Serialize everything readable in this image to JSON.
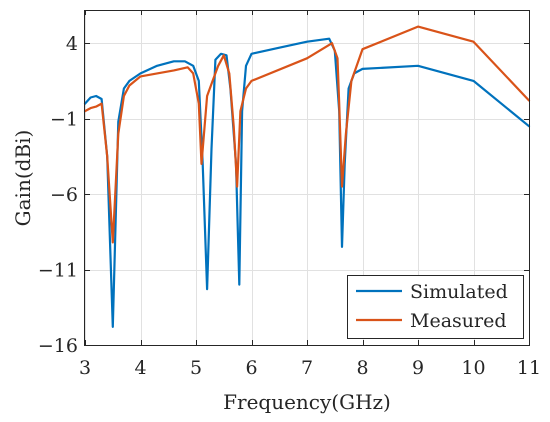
{
  "chart_data": {
    "type": "line",
    "title": "",
    "xlabel": "Frequency(GHz)",
    "ylabel": "Gain(dBi)",
    "xlim": [
      3,
      11
    ],
    "ylim": [
      -16,
      6.2
    ],
    "xticks": [
      3,
      4,
      5,
      6,
      7,
      8,
      9,
      10,
      11
    ],
    "yticks": [
      4,
      -1,
      -6,
      -11,
      -16
    ],
    "xtick_labels": [
      "3",
      "4",
      "5",
      "6",
      "7",
      "8",
      "9",
      "10",
      "11"
    ],
    "ytick_labels": [
      "4",
      "−1",
      "−6",
      "−11",
      "−16"
    ],
    "grid": true,
    "legend_position": "bottom-right",
    "series": [
      {
        "name": "Simulated",
        "color": "#0072BD",
        "x": [
          3.0,
          3.1,
          3.2,
          3.3,
          3.4,
          3.5,
          3.6,
          3.7,
          3.8,
          4.0,
          4.3,
          4.6,
          4.8,
          4.95,
          5.05,
          5.12,
          5.2,
          5.28,
          5.35,
          5.45,
          5.55,
          5.62,
          5.72,
          5.78,
          5.83,
          5.9,
          6.0,
          6.5,
          7.0,
          7.4,
          7.5,
          7.58,
          7.63,
          7.68,
          7.75,
          7.85,
          8.0,
          9.0,
          10.0,
          11.0
        ],
        "y": [
          0.0,
          0.4,
          0.5,
          0.3,
          -3.5,
          -14.8,
          -1.2,
          1.0,
          1.5,
          2.0,
          2.5,
          2.8,
          2.8,
          2.5,
          1.5,
          -4.0,
          -12.3,
          -3.0,
          2.9,
          3.3,
          3.2,
          1.0,
          -4.0,
          -12.0,
          -0.5,
          2.5,
          3.3,
          3.7,
          4.1,
          4.3,
          3.5,
          -0.5,
          -9.5,
          -4.0,
          1.0,
          2.0,
          2.3,
          2.5,
          1.5,
          -1.5
        ]
      },
      {
        "name": "Measured",
        "color": "#D95319",
        "x": [
          3.0,
          3.1,
          3.2,
          3.3,
          3.4,
          3.5,
          3.6,
          3.7,
          3.8,
          4.0,
          4.3,
          4.6,
          4.85,
          4.95,
          5.05,
          5.1,
          5.2,
          5.3,
          5.4,
          5.5,
          5.6,
          5.68,
          5.74,
          5.8,
          5.9,
          6.0,
          7.0,
          7.45,
          7.55,
          7.58,
          7.63,
          7.7,
          7.8,
          8.0,
          9.0,
          10.0,
          11.0
        ],
        "y": [
          -0.5,
          -0.3,
          -0.2,
          0.0,
          -3.5,
          -9.2,
          -2.0,
          0.5,
          1.2,
          1.8,
          2.0,
          2.2,
          2.4,
          2.0,
          0.0,
          -4.0,
          0.5,
          1.5,
          2.5,
          3.2,
          2.0,
          -1.5,
          -5.5,
          -0.5,
          1.0,
          1.5,
          3.0,
          4.0,
          3.0,
          0.0,
          -5.5,
          -2.0,
          1.5,
          3.6,
          5.1,
          4.1,
          0.2
        ]
      }
    ]
  }
}
